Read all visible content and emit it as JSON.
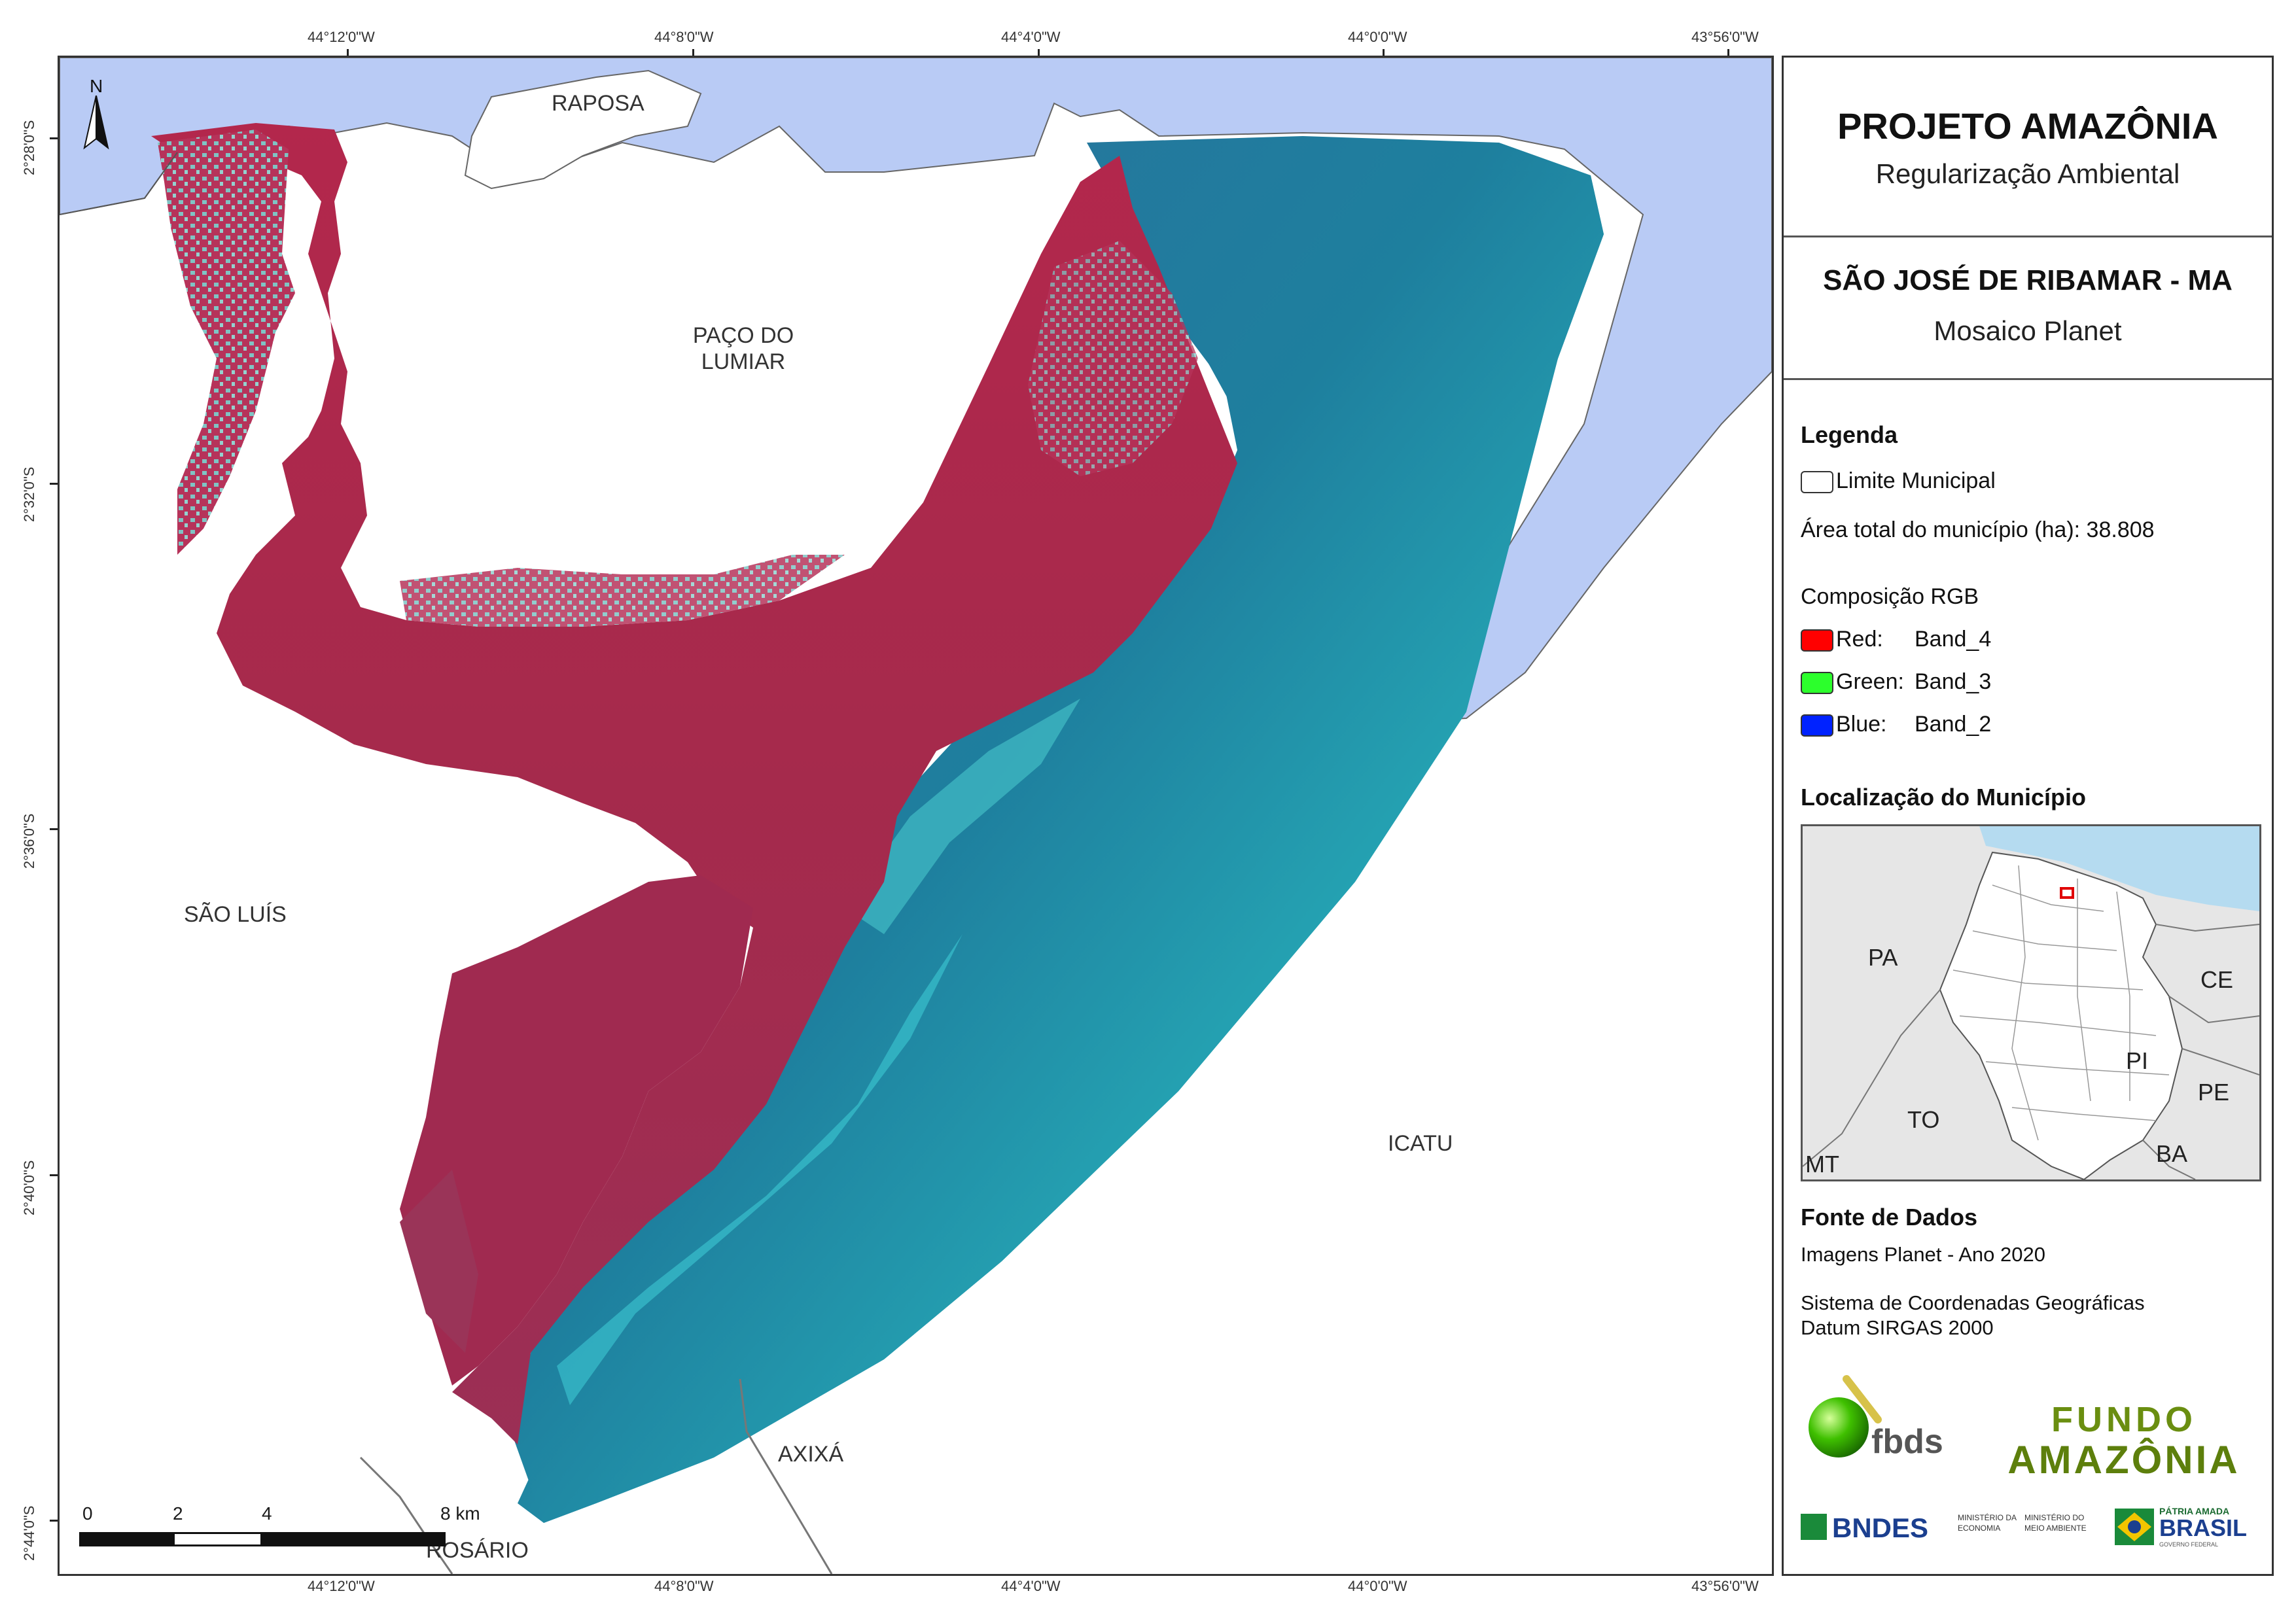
{
  "map": {
    "lon_labels": [
      "44°12'0\"W",
      "44°8'0\"W",
      "44°4'0\"W",
      "44°0'0\"W",
      "43°56'0\"W"
    ],
    "lat_labels": [
      "2°28'0\"S",
      "2°32'0\"S",
      "2°36'0\"S",
      "2°40'0\"S",
      "2°44'0\"S"
    ],
    "municipalities": {
      "raposa": "RAPOSA",
      "paco_line1": "PAÇO DO",
      "paco_line2": "LUMIAR",
      "sao_luis": "SÃO LUÍS",
      "icatu": "ICATU",
      "axixa": "AXIXÁ",
      "rosario": "ROSÁRIO"
    },
    "north_arrow": "N",
    "scale_bar": {
      "labels": [
        "0",
        "2",
        "4",
        "8 km"
      ],
      "ticks_km": [
        0,
        2,
        4,
        8
      ]
    },
    "colors": {
      "ocean": "#b9cbf5",
      "land_red": "#b22a4b",
      "water_teal": "#1f8fa6",
      "deep_water": "#1d5a86"
    }
  },
  "panel": {
    "title": "PROJETO AMAZÔNIA",
    "subtitle": "Regularização Ambiental",
    "municipality": "SÃO JOSÉ DE RIBAMAR - MA",
    "map_type": "Mosaico Planet",
    "legend": {
      "heading": "Legenda",
      "limit_label": "Limite Municipal",
      "area_text": "Área total do município (ha): 38.808",
      "rgb_heading": "Composição RGB",
      "bands": [
        {
          "channel": "Red:",
          "band": "Band_4",
          "color": "#ff0000"
        },
        {
          "channel": "Green:",
          "band": "Band_3",
          "color": "#2cff2c"
        },
        {
          "channel": "Blue:",
          "band": "Band_2",
          "color": "#0022ff"
        }
      ]
    },
    "location": {
      "heading": "Localização do Município",
      "labels": {
        "pa": "PA",
        "ce": "CE",
        "pi": "PI",
        "pe": "PE",
        "to": "TO",
        "ba": "BA",
        "mt": "MT"
      }
    },
    "sources": {
      "heading": "Fonte de Dados",
      "line1": "Imagens Planet - Ano 2020",
      "line2": "Sistema de Coordenadas Geográficas",
      "line3": "Datum SIRGAS 2000"
    },
    "logos": {
      "fbds": "fbds",
      "fundo_line1": "FUNDO",
      "fundo_line2": "AMAZÔNIA",
      "bndes": "BNDES",
      "min_econ_line1": "MINISTÉRIO DA",
      "min_econ_line2": "ECONOMIA",
      "min_env_line1": "MINISTÉRIO DO",
      "min_env_line2": "MEIO AMBIENTE",
      "brasil_line1": "PÁTRIA AMADA",
      "brasil_line2": "BRASIL",
      "brasil_line3": "GOVERNO FEDERAL"
    }
  }
}
